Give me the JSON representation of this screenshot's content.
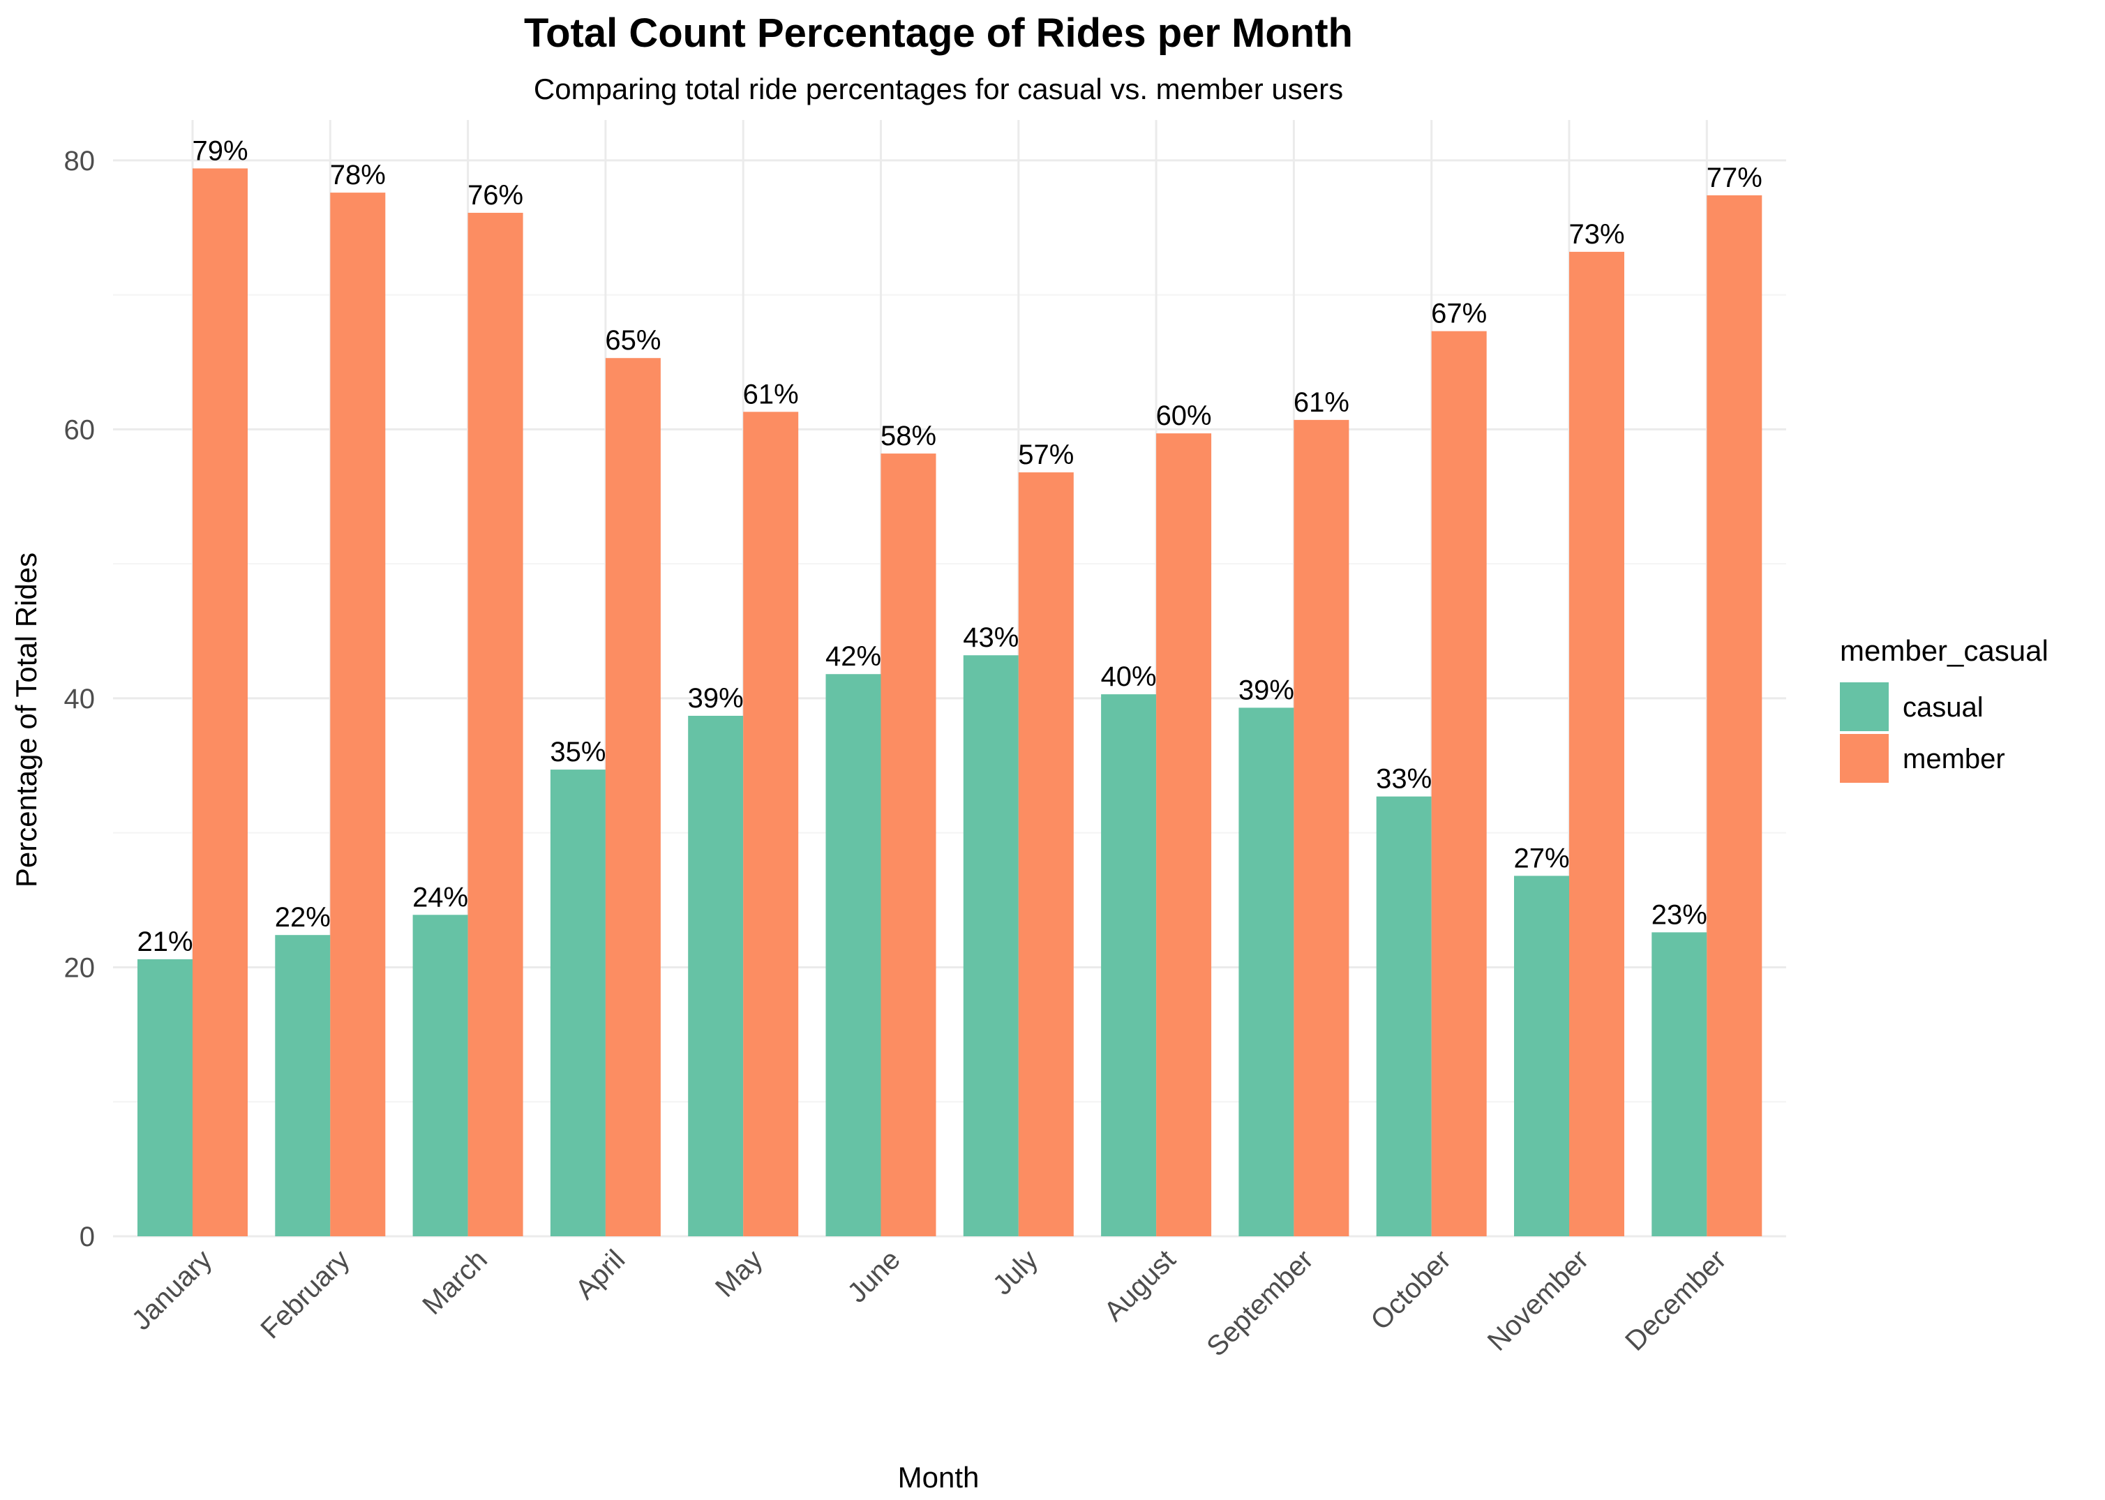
{
  "chart_data": {
    "type": "bar",
    "title": "Total Count Percentage of Rides per Month",
    "subtitle": "Comparing total ride percentages for casual vs. member users",
    "xlabel": "Month",
    "ylabel": "Percentage of Total Rides",
    "ylim": [
      0,
      83
    ],
    "yticks": [
      0,
      20,
      40,
      60,
      80
    ],
    "grid": true,
    "legend": {
      "title": "member_casual",
      "placement": "right"
    },
    "categories": [
      "January",
      "February",
      "March",
      "April",
      "May",
      "June",
      "July",
      "August",
      "September",
      "October",
      "November",
      "December"
    ],
    "series": [
      {
        "name": "casual",
        "color": "#66c2a5",
        "values": [
          20.6,
          22.4,
          23.9,
          34.7,
          38.7,
          41.8,
          43.2,
          40.3,
          39.3,
          32.7,
          26.8,
          22.6
        ],
        "labels": [
          "21%",
          "22%",
          "24%",
          "35%",
          "39%",
          "42%",
          "43%",
          "40%",
          "39%",
          "33%",
          "27%",
          "23%"
        ]
      },
      {
        "name": "member",
        "color": "#fc8d62",
        "values": [
          79.4,
          77.6,
          76.1,
          65.3,
          61.3,
          58.2,
          56.8,
          59.7,
          60.7,
          67.3,
          73.2,
          77.4
        ],
        "labels": [
          "79%",
          "78%",
          "76%",
          "65%",
          "61%",
          "58%",
          "57%",
          "60%",
          "61%",
          "67%",
          "73%",
          "77%"
        ]
      }
    ]
  }
}
